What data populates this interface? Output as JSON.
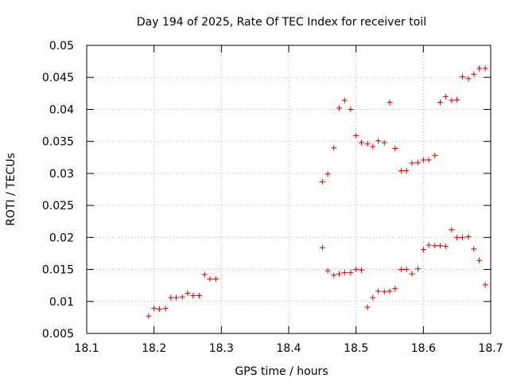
{
  "chart_data": {
    "type": "scatter",
    "title": "Day 194 of 2025, Rate Of TEC Index for receiver toil",
    "xlabel": "GPS time / hours",
    "ylabel": "ROTI / TECUs",
    "xlim": [
      18.1,
      18.7
    ],
    "ylim": [
      0.005,
      0.05
    ],
    "xticks": [
      18.1,
      18.2,
      18.3,
      18.4,
      18.5,
      18.6,
      18.7
    ],
    "xtick_labels": [
      "18.1",
      "18.2",
      "18.3",
      "18.4",
      "18.5",
      "18.6",
      "18.7"
    ],
    "yticks": [
      0.005,
      0.01,
      0.015,
      0.02,
      0.025,
      0.03,
      0.035,
      0.04,
      0.045,
      0.05
    ],
    "ytick_labels": [
      "0.005",
      "0.01",
      "0.015",
      "0.02",
      "0.025",
      "0.03",
      "0.035",
      "0.04",
      "0.045",
      "0.05"
    ],
    "grid": true,
    "marker": "+",
    "color": "#cc0000",
    "series": [
      {
        "name": "ROTI",
        "points": [
          [
            18.192,
            0.0077
          ],
          [
            18.2,
            0.0089
          ],
          [
            18.208,
            0.0088
          ],
          [
            18.217,
            0.0089
          ],
          [
            18.225,
            0.0106
          ],
          [
            18.233,
            0.0106
          ],
          [
            18.242,
            0.0107
          ],
          [
            18.25,
            0.0113
          ],
          [
            18.258,
            0.0109
          ],
          [
            18.267,
            0.0109
          ],
          [
            18.275,
            0.0142
          ],
          [
            18.283,
            0.0135
          ],
          [
            18.292,
            0.0135
          ],
          [
            18.45,
            0.0287
          ],
          [
            18.458,
            0.0299
          ],
          [
            18.467,
            0.034
          ],
          [
            18.475,
            0.0402
          ],
          [
            18.483,
            0.0414
          ],
          [
            18.492,
            0.04
          ],
          [
            18.5,
            0.0359
          ],
          [
            18.508,
            0.0348
          ],
          [
            18.517,
            0.0346
          ],
          [
            18.525,
            0.0342
          ],
          [
            18.533,
            0.0351
          ],
          [
            18.542,
            0.0348
          ],
          [
            18.55,
            0.0411
          ],
          [
            18.558,
            0.0339
          ],
          [
            18.567,
            0.0304
          ],
          [
            18.575,
            0.0304
          ],
          [
            18.583,
            0.0316
          ],
          [
            18.592,
            0.0317
          ],
          [
            18.6,
            0.0321
          ],
          [
            18.608,
            0.0321
          ],
          [
            18.617,
            0.0328
          ],
          [
            18.625,
            0.0411
          ],
          [
            18.633,
            0.042
          ],
          [
            18.642,
            0.0414
          ],
          [
            18.65,
            0.0415
          ],
          [
            18.658,
            0.0451
          ],
          [
            18.667,
            0.0448
          ],
          [
            18.675,
            0.0455
          ],
          [
            18.683,
            0.0464
          ],
          [
            18.692,
            0.0464
          ],
          [
            18.45,
            0.0184
          ],
          [
            18.458,
            0.0148
          ],
          [
            18.467,
            0.0141
          ],
          [
            18.475,
            0.0143
          ],
          [
            18.483,
            0.0145
          ],
          [
            18.492,
            0.0145
          ],
          [
            18.5,
            0.015
          ],
          [
            18.508,
            0.0149
          ],
          [
            18.517,
            0.0091
          ],
          [
            18.525,
            0.0106
          ],
          [
            18.533,
            0.0116
          ],
          [
            18.542,
            0.0115
          ],
          [
            18.55,
            0.0116
          ],
          [
            18.558,
            0.012
          ],
          [
            18.567,
            0.015
          ],
          [
            18.575,
            0.015
          ],
          [
            18.583,
            0.0143
          ],
          [
            18.592,
            0.0151
          ],
          [
            18.6,
            0.0181
          ],
          [
            18.608,
            0.0188
          ],
          [
            18.617,
            0.0187
          ],
          [
            18.625,
            0.0187
          ],
          [
            18.633,
            0.0186
          ],
          [
            18.642,
            0.0212
          ],
          [
            18.65,
            0.02
          ],
          [
            18.658,
            0.02
          ],
          [
            18.667,
            0.0201
          ],
          [
            18.675,
            0.0182
          ],
          [
            18.683,
            0.0164
          ],
          [
            18.692,
            0.0126
          ]
        ]
      }
    ]
  }
}
